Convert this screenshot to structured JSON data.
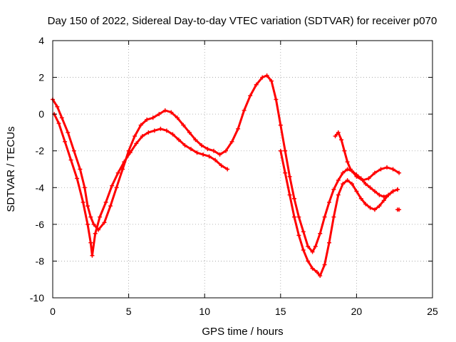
{
  "chart_data": {
    "type": "scatter",
    "title": "Day 150 of 2022, Sidereal Day-to-day VTEC variation (SDTVAR) for receiver p070",
    "xlabel": "GPS time / hours",
    "ylabel": "SDTVAR / TECUs",
    "xlim": [
      0,
      25
    ],
    "ylim": [
      -10,
      4
    ],
    "xticks": [
      0,
      5,
      10,
      15,
      20,
      25
    ],
    "yticks": [
      -10,
      -8,
      -6,
      -4,
      -2,
      0,
      2,
      4
    ],
    "grid": true,
    "marker": "plus",
    "color": "#ff0000",
    "series": [
      {
        "x": [
          0.0,
          0.3,
          0.6,
          1.0,
          1.4,
          1.8,
          2.1,
          2.3,
          2.5,
          2.7,
          3.0,
          3.4,
          3.8,
          4.2,
          4.6,
          5.0,
          5.4,
          5.8,
          6.2,
          6.6,
          7.0,
          7.4,
          7.8,
          8.2,
          8.6,
          9.0,
          9.4,
          9.8,
          10.2,
          10.6,
          11.0,
          11.4,
          11.8,
          12.2,
          12.6,
          13.0,
          13.4,
          13.8,
          14.1,
          14.4,
          14.7,
          15.0,
          15.3,
          15.6,
          15.9,
          16.2,
          16.5,
          16.8,
          17.1,
          17.3,
          17.6,
          17.9,
          18.2,
          18.5,
          18.8,
          19.1,
          19.4,
          19.7,
          20.0,
          20.3,
          20.6,
          20.9,
          21.2,
          21.5,
          21.8,
          22.1,
          22.4,
          22.7
        ],
        "y": [
          0.8,
          0.4,
          -0.2,
          -1.0,
          -2.0,
          -3.0,
          -4.0,
          -5.0,
          -5.6,
          -6.0,
          -6.3,
          -5.9,
          -5.0,
          -4.0,
          -3.0,
          -2.0,
          -1.2,
          -0.6,
          -0.3,
          -0.2,
          0.0,
          0.2,
          0.1,
          -0.2,
          -0.6,
          -1.0,
          -1.4,
          -1.7,
          -1.9,
          -2.0,
          -2.2,
          -2.0,
          -1.5,
          -0.8,
          0.2,
          1.0,
          1.6,
          2.0,
          2.1,
          1.8,
          0.8,
          -0.6,
          -2.0,
          -3.4,
          -4.6,
          -5.6,
          -6.4,
          -7.2,
          -7.5,
          -7.2,
          -6.5,
          -5.6,
          -4.8,
          -4.1,
          -3.6,
          -3.2,
          -3.0,
          -3.1,
          -3.3,
          -3.5,
          -3.8,
          -4.0,
          -4.2,
          -4.4,
          -4.5,
          -4.4,
          -4.2,
          -4.1
        ]
      },
      {
        "x": [
          0.1,
          0.4,
          0.8,
          1.2,
          1.6,
          2.0,
          2.3,
          2.5,
          2.6,
          2.8,
          3.1,
          3.5,
          3.9,
          4.3,
          4.7,
          5.1,
          5.5,
          5.9,
          6.3,
          6.7,
          7.1,
          7.5,
          7.9,
          8.3,
          8.7,
          9.1,
          9.5,
          9.9,
          10.3,
          10.7,
          11.1,
          11.5
        ],
        "y": [
          0.0,
          -0.5,
          -1.5,
          -2.5,
          -3.5,
          -4.8,
          -6.0,
          -7.0,
          -7.7,
          -6.5,
          -5.6,
          -4.8,
          -3.9,
          -3.2,
          -2.6,
          -2.1,
          -1.6,
          -1.2,
          -1.0,
          -0.9,
          -0.8,
          -0.9,
          -1.1,
          -1.4,
          -1.7,
          -1.9,
          -2.1,
          -2.2,
          -2.3,
          -2.5,
          -2.8,
          -3.0
        ]
      },
      {
        "x": [
          15.0,
          15.3,
          15.6,
          15.9,
          16.2,
          16.5,
          16.8,
          17.1,
          17.4,
          17.6,
          17.9,
          18.2,
          18.5,
          18.8,
          19.1,
          19.4,
          19.7,
          20.0,
          20.3,
          20.6,
          20.9,
          21.2,
          21.5,
          21.8,
          22.1,
          22.4,
          22.7
        ],
        "y": [
          -2.0,
          -3.2,
          -4.4,
          -5.6,
          -6.6,
          -7.4,
          -8.0,
          -8.4,
          -8.6,
          -8.8,
          -8.2,
          -7.0,
          -5.6,
          -4.4,
          -3.8,
          -3.6,
          -3.8,
          -4.2,
          -4.6,
          -4.9,
          -5.1,
          -5.2,
          -5.0,
          -4.7,
          -4.4,
          -4.2,
          -4.1
        ]
      },
      {
        "x": [
          18.6,
          18.8,
          19.0,
          19.2,
          19.4,
          19.6,
          20.0,
          20.4,
          20.8,
          21.2,
          21.6,
          22.0,
          22.4,
          22.8
        ],
        "y": [
          -1.2,
          -1.0,
          -1.4,
          -2.0,
          -2.6,
          -3.0,
          -3.4,
          -3.6,
          -3.5,
          -3.2,
          -3.0,
          -2.9,
          -3.0,
          -3.2
        ]
      },
      {
        "x": [
          22.7,
          22.8
        ],
        "y": [
          -5.2,
          -5.2
        ]
      }
    ]
  }
}
